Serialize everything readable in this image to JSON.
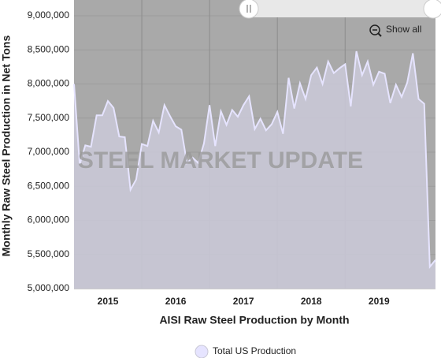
{
  "chart_data": {
    "type": "area",
    "x_axis_label": "AISI Raw Steel Production by Month",
    "y_axis_label": "Monthly Raw Steel Production in Net Tons",
    "watermark": "STEEL MARKET UPDATE",
    "button": "Show all",
    "xgroups": [
      "2015",
      "2016",
      "2017",
      "2018",
      "2019"
    ],
    "categories": [
      null,
      null,
      null,
      null,
      null,
      null,
      null,
      null,
      null,
      null,
      null,
      null,
      null,
      null,
      null,
      null,
      null,
      null,
      null,
      null,
      null,
      null,
      null,
      null,
      null,
      null,
      null,
      null,
      null,
      null,
      null,
      null,
      null,
      null,
      null,
      null,
      null,
      null,
      null,
      null,
      null,
      null,
      null,
      null,
      null,
      null,
      null,
      null,
      null,
      null,
      null,
      null,
      null,
      null,
      null,
      null,
      null,
      null,
      null,
      null,
      null,
      null,
      null,
      null,
      null
    ],
    "series": [
      {
        "name": "Total US Production",
        "color": "#e6e4ff",
        "fill": "#c9c8d6",
        "values": [
          8000000,
          6820000,
          7100000,
          7080000,
          7540000,
          7540000,
          7750000,
          7650000,
          7230000,
          7220000,
          6450000,
          6600000,
          7120000,
          7090000,
          7460000,
          7290000,
          7690000,
          7530000,
          7380000,
          7330000,
          6840000,
          6920000,
          6840000,
          7130000,
          7690000,
          7090000,
          7600000,
          7400000,
          7620000,
          7520000,
          7690000,
          7820000,
          7340000,
          7490000,
          7320000,
          7410000,
          7590000,
          7270000,
          8090000,
          7640000,
          8010000,
          7780000,
          8130000,
          8240000,
          8000000,
          8330000,
          8160000,
          8230000,
          8290000,
          7670000,
          8480000,
          8130000,
          8330000,
          7990000,
          8180000,
          8150000,
          7720000,
          7990000,
          7810000,
          8020000,
          8450000,
          7780000,
          7710000,
          5320000,
          5420000
        ]
      }
    ],
    "ylim": [
      5000000,
      9000000
    ],
    "yticks": [
      {
        "value": 5000000,
        "label": "5,000,000"
      },
      {
        "value": 5500000,
        "label": "5,500,000"
      },
      {
        "value": 6000000,
        "label": "6,000,000"
      },
      {
        "value": 6500000,
        "label": "6,500,000"
      },
      {
        "value": 7000000,
        "label": "7,000,000"
      },
      {
        "value": 7500000,
        "label": "7,500,000"
      },
      {
        "value": 8000000,
        "label": "8,000,000"
      },
      {
        "value": 8500000,
        "label": "8,500,000"
      },
      {
        "value": 9000000,
        "label": "9,000,000"
      }
    ],
    "grid": true,
    "background": "#a9a9a9"
  }
}
